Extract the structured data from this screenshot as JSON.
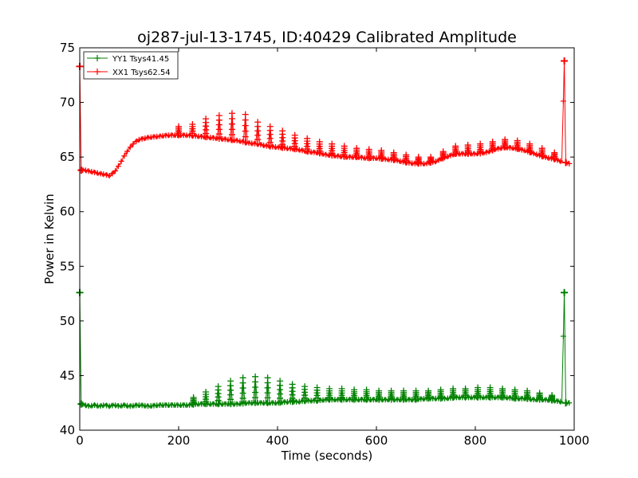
{
  "chart_data": {
    "type": "line",
    "title": "oj287-jul-13-1745, ID:40429 Calibrated Amplitude",
    "xlabel": "Time (seconds)",
    "ylabel": "Power in Kelvin",
    "xlim": [
      0,
      1000
    ],
    "ylim": [
      40,
      75
    ],
    "x_ticks": [
      0,
      200,
      400,
      600,
      800,
      1000
    ],
    "y_ticks": [
      40,
      45,
      50,
      55,
      60,
      65,
      70,
      75
    ],
    "grid": false,
    "legend_position": "top-left",
    "series": [
      {
        "name": "YY1 Tsys41.45",
        "color": "#008000",
        "marker": "+",
        "points": [
          [
            0,
            52.6
          ],
          [
            3,
            42.4
          ],
          [
            10,
            42.3
          ],
          [
            20,
            42.2
          ],
          [
            30,
            42.3
          ],
          [
            40,
            42.2
          ],
          [
            50,
            42.3
          ],
          [
            60,
            42.2
          ],
          [
            70,
            42.3
          ],
          [
            80,
            42.2
          ],
          [
            90,
            42.3
          ],
          [
            100,
            42.2
          ],
          [
            120,
            42.3
          ],
          [
            140,
            42.2
          ],
          [
            160,
            42.3
          ],
          [
            180,
            42.3
          ],
          [
            200,
            42.3
          ],
          [
            220,
            42.3
          ],
          [
            240,
            42.4
          ],
          [
            260,
            42.4
          ],
          [
            280,
            42.4
          ],
          [
            300,
            42.4
          ],
          [
            320,
            42.4
          ],
          [
            340,
            42.5
          ],
          [
            360,
            42.5
          ],
          [
            380,
            42.5
          ],
          [
            400,
            42.5
          ],
          [
            420,
            42.6
          ],
          [
            440,
            42.6
          ],
          [
            460,
            42.7
          ],
          [
            480,
            42.7
          ],
          [
            500,
            42.8
          ],
          [
            520,
            42.8
          ],
          [
            540,
            42.8
          ],
          [
            560,
            42.8
          ],
          [
            580,
            42.8
          ],
          [
            600,
            42.8
          ],
          [
            620,
            42.8
          ],
          [
            640,
            42.8
          ],
          [
            660,
            42.8
          ],
          [
            680,
            42.8
          ],
          [
            700,
            42.9
          ],
          [
            720,
            42.9
          ],
          [
            740,
            42.9
          ],
          [
            760,
            43.0
          ],
          [
            780,
            43.0
          ],
          [
            800,
            43.0
          ],
          [
            820,
            43.0
          ],
          [
            840,
            43.0
          ],
          [
            860,
            43.0
          ],
          [
            880,
            42.9
          ],
          [
            900,
            42.9
          ],
          [
            920,
            42.8
          ],
          [
            940,
            42.8
          ],
          [
            960,
            42.7
          ],
          [
            975,
            42.6
          ],
          [
            980,
            52.6
          ],
          [
            983,
            42.5
          ],
          [
            990,
            42.5
          ]
        ],
        "peaks": [
          [
            230,
            43.0
          ],
          [
            255,
            43.5
          ],
          [
            280,
            44.0
          ],
          [
            305,
            44.5
          ],
          [
            330,
            44.8
          ],
          [
            355,
            44.9
          ],
          [
            380,
            44.8
          ],
          [
            405,
            44.5
          ],
          [
            430,
            44.2
          ],
          [
            455,
            44.0
          ],
          [
            480,
            43.9
          ],
          [
            505,
            43.8
          ],
          [
            530,
            43.8
          ],
          [
            555,
            43.7
          ],
          [
            580,
            43.7
          ],
          [
            605,
            43.6
          ],
          [
            630,
            43.6
          ],
          [
            655,
            43.6
          ],
          [
            680,
            43.6
          ],
          [
            705,
            43.6
          ],
          [
            730,
            43.7
          ],
          [
            755,
            43.8
          ],
          [
            780,
            43.8
          ],
          [
            805,
            43.9
          ],
          [
            830,
            43.9
          ],
          [
            855,
            43.8
          ],
          [
            880,
            43.7
          ],
          [
            905,
            43.6
          ],
          [
            930,
            43.4
          ],
          [
            955,
            43.2
          ]
        ]
      },
      {
        "name": "XX1 Tsys62.54",
        "color": "#ff0000",
        "marker": "+",
        "points": [
          [
            0,
            73.3
          ],
          [
            3,
            63.8
          ],
          [
            10,
            63.8
          ],
          [
            20,
            63.7
          ],
          [
            30,
            63.6
          ],
          [
            40,
            63.5
          ],
          [
            50,
            63.4
          ],
          [
            60,
            63.3
          ],
          [
            70,
            63.6
          ],
          [
            80,
            64.3
          ],
          [
            90,
            65.1
          ],
          [
            100,
            65.8
          ],
          [
            110,
            66.3
          ],
          [
            120,
            66.6
          ],
          [
            140,
            66.8
          ],
          [
            160,
            66.9
          ],
          [
            180,
            67.0
          ],
          [
            200,
            67.0
          ],
          [
            220,
            67.0
          ],
          [
            240,
            66.9
          ],
          [
            260,
            66.8
          ],
          [
            280,
            66.7
          ],
          [
            300,
            66.6
          ],
          [
            320,
            66.5
          ],
          [
            340,
            66.3
          ],
          [
            360,
            66.2
          ],
          [
            380,
            66.0
          ],
          [
            400,
            65.9
          ],
          [
            420,
            65.8
          ],
          [
            440,
            65.7
          ],
          [
            460,
            65.5
          ],
          [
            480,
            65.4
          ],
          [
            500,
            65.2
          ],
          [
            520,
            65.1
          ],
          [
            540,
            65.0
          ],
          [
            560,
            65.0
          ],
          [
            580,
            64.9
          ],
          [
            600,
            64.9
          ],
          [
            620,
            64.8
          ],
          [
            640,
            64.7
          ],
          [
            660,
            64.5
          ],
          [
            680,
            64.4
          ],
          [
            700,
            64.4
          ],
          [
            720,
            64.6
          ],
          [
            740,
            65.0
          ],
          [
            760,
            65.3
          ],
          [
            780,
            65.3
          ],
          [
            800,
            65.3
          ],
          [
            820,
            65.4
          ],
          [
            840,
            65.7
          ],
          [
            860,
            65.9
          ],
          [
            880,
            65.8
          ],
          [
            900,
            65.6
          ],
          [
            920,
            65.3
          ],
          [
            940,
            65.0
          ],
          [
            960,
            64.8
          ],
          [
            975,
            64.6
          ],
          [
            980,
            73.8
          ],
          [
            983,
            64.5
          ],
          [
            990,
            64.4
          ]
        ],
        "peaks": [
          [
            200,
            67.8
          ],
          [
            228,
            68.0
          ],
          [
            255,
            68.5
          ],
          [
            282,
            68.8
          ],
          [
            308,
            69.0
          ],
          [
            335,
            68.9
          ],
          [
            360,
            68.2
          ],
          [
            385,
            67.8
          ],
          [
            410,
            67.4
          ],
          [
            435,
            67.0
          ],
          [
            460,
            66.7
          ],
          [
            485,
            66.4
          ],
          [
            510,
            66.2
          ],
          [
            535,
            66.0
          ],
          [
            560,
            65.8
          ],
          [
            585,
            65.7
          ],
          [
            610,
            65.6
          ],
          [
            635,
            65.4
          ],
          [
            660,
            65.2
          ],
          [
            685,
            65.0
          ],
          [
            710,
            65.0
          ],
          [
            735,
            65.5
          ],
          [
            760,
            66.0
          ],
          [
            785,
            66.1
          ],
          [
            810,
            66.2
          ],
          [
            835,
            66.4
          ],
          [
            860,
            66.6
          ],
          [
            885,
            66.5
          ],
          [
            910,
            66.2
          ],
          [
            935,
            65.8
          ],
          [
            960,
            65.4
          ]
        ]
      }
    ]
  }
}
